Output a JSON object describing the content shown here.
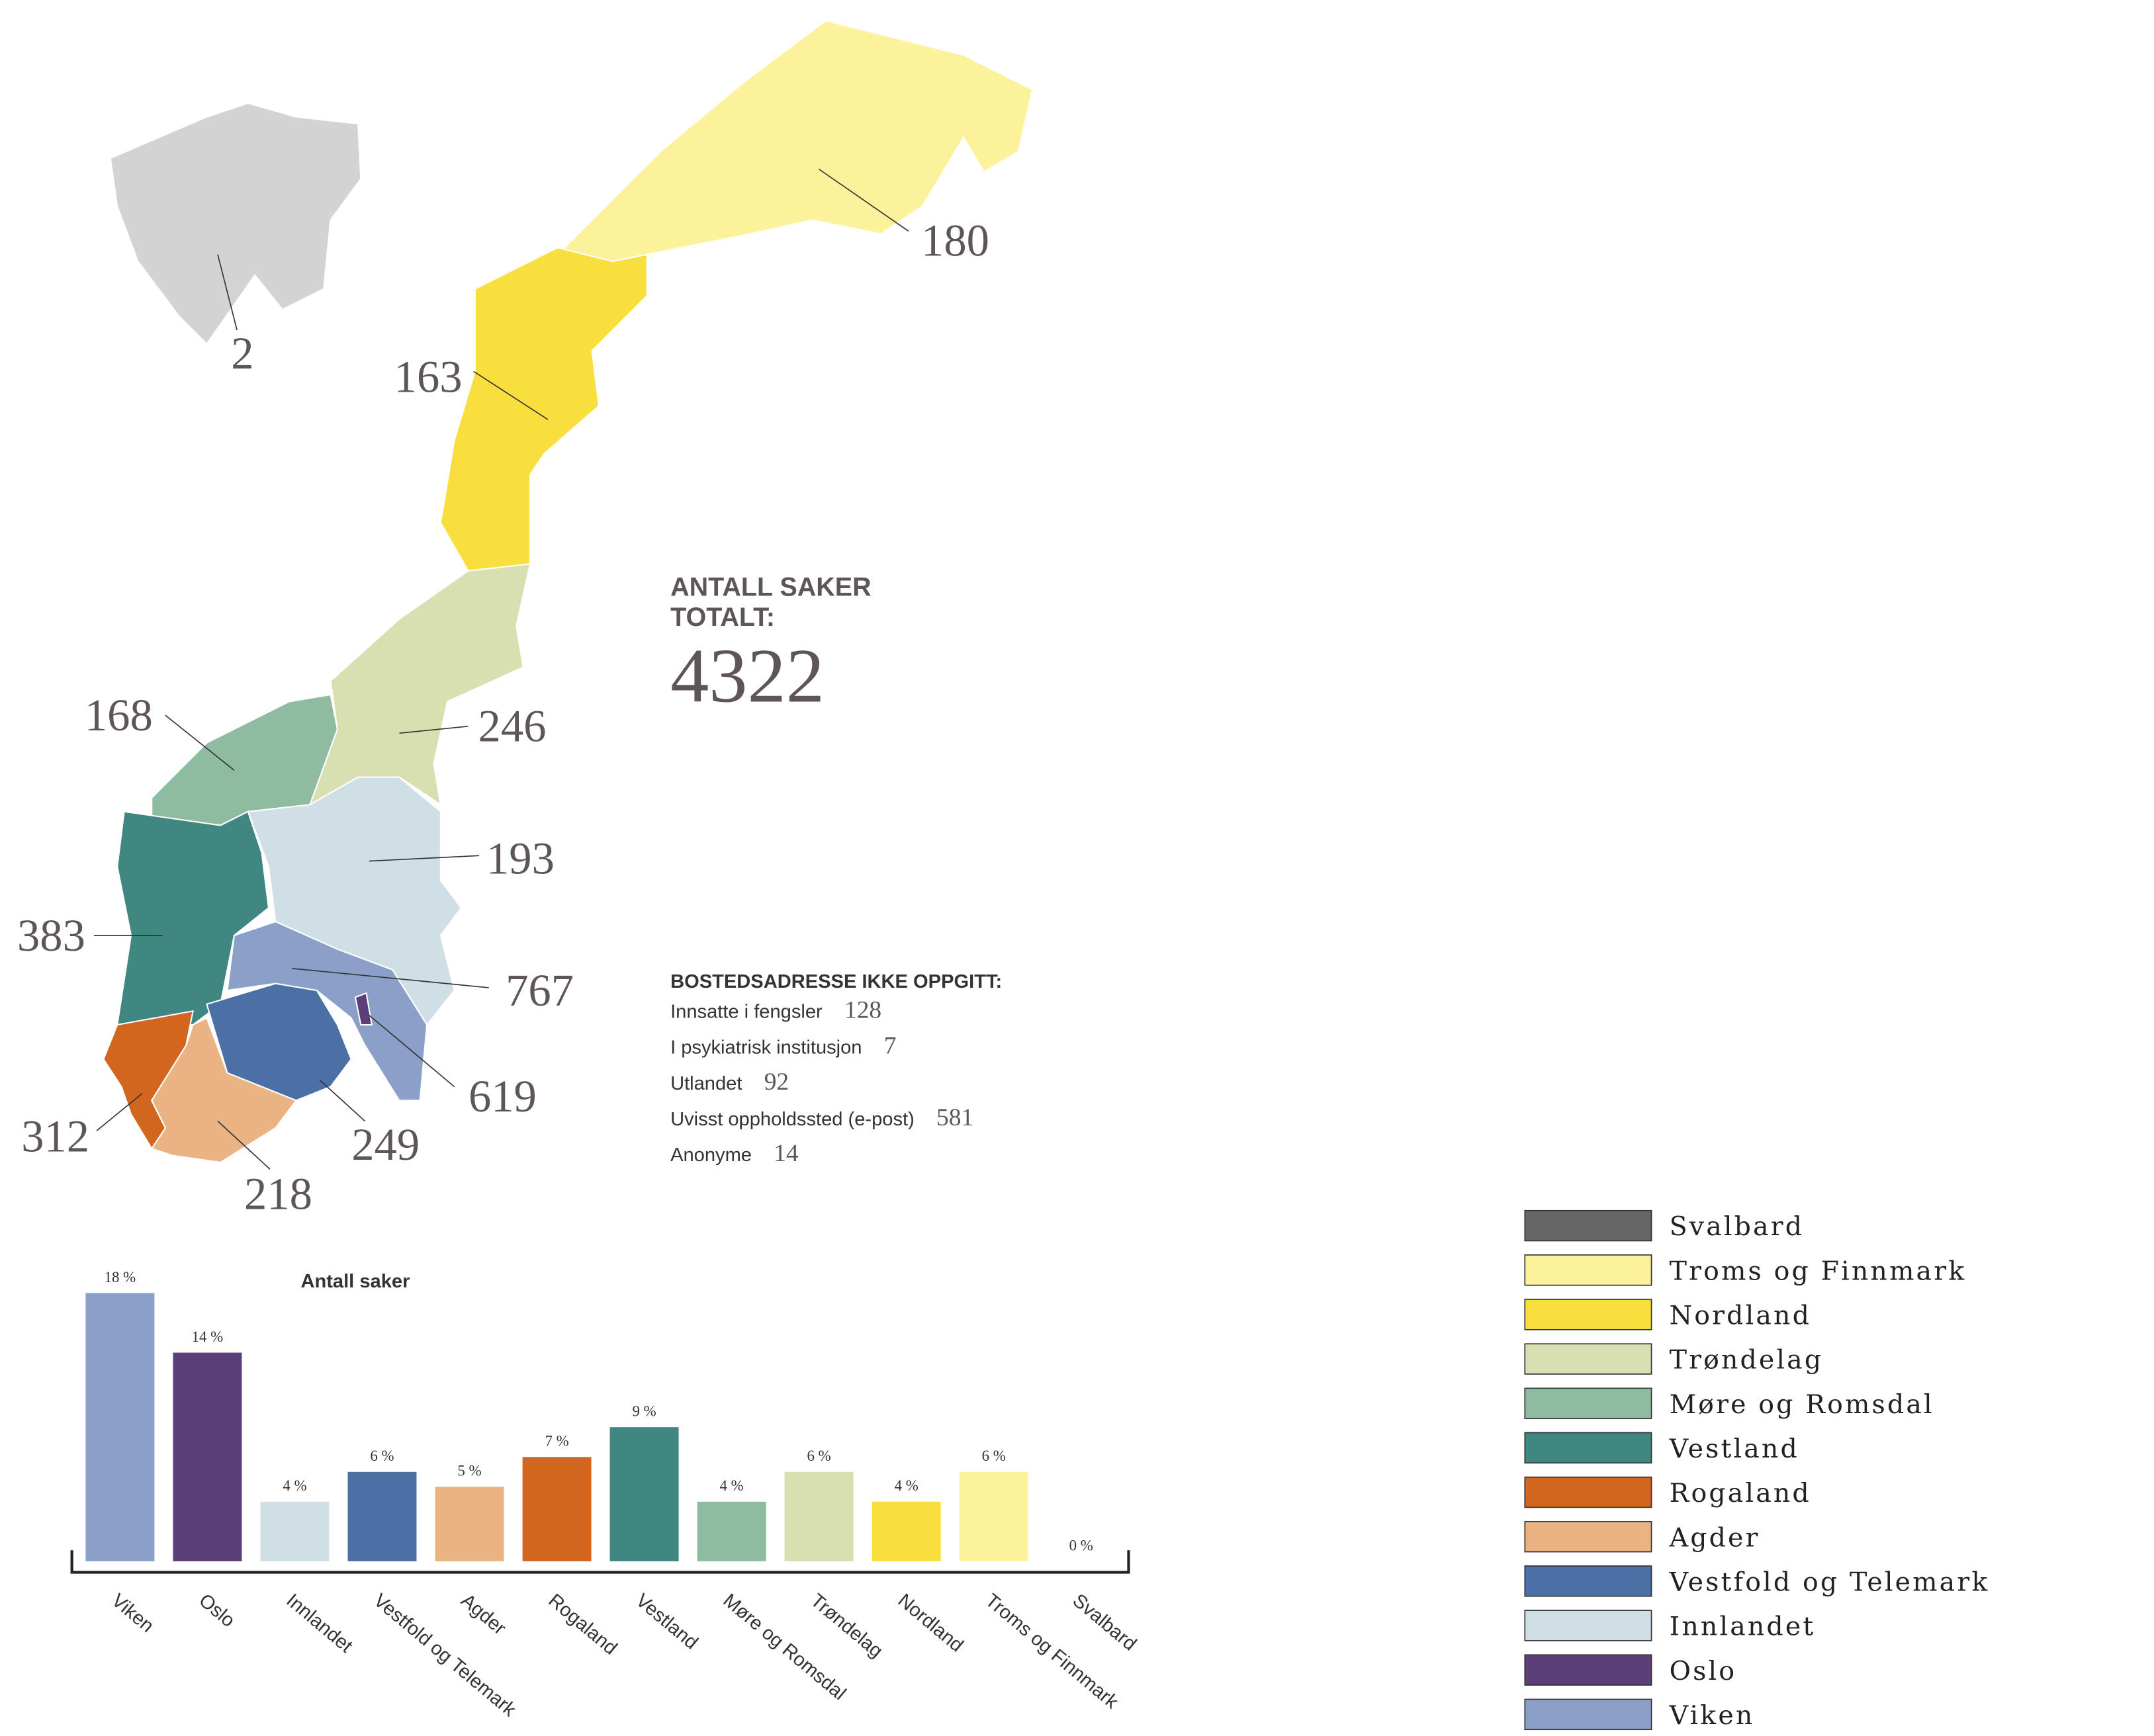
{
  "map_labels": [
    180,
    2,
    163,
    168,
    246,
    193,
    383,
    767,
    619,
    312,
    249,
    218
  ],
  "total": {
    "title_lines": [
      "ANTALL SAKER",
      "TOTALT:"
    ],
    "value": 4322
  },
  "unspecified": {
    "title": "BOSTEDSADRESSE IKKE OPPGITT:",
    "rows": [
      [
        "Innsatte i fengsler",
        128
      ],
      [
        "I psykiatrisk institusjon",
        7
      ],
      [
        "Utlandet",
        92
      ],
      [
        "Uvisst oppholdssted (e-post)",
        581
      ],
      [
        "Anonyme",
        14
      ]
    ]
  },
  "chart_data": {
    "type": "bar",
    "title": "Antall saker",
    "categories": [
      "Viken",
      "Oslo",
      "Innlandet",
      "Vestfold og Telemark",
      "Agder",
      "Rogaland",
      "Vestland",
      "Møre og Romsdal",
      "Trøndelag",
      "Nordland",
      "Troms og Finnmark",
      "Svalbard"
    ],
    "values": [
      18,
      14,
      4,
      6,
      5,
      7,
      9,
      4,
      6,
      4,
      6,
      0
    ],
    "value_labels": [
      "18 %",
      "14 %",
      "4 %",
      "6 %",
      "5 %",
      "7 %",
      "9 %",
      "4 %",
      "6 %",
      "4 %",
      "6 %",
      "0 %"
    ],
    "colors": [
      "#8aa0c8",
      "#5c3f78",
      "#d0dfe6",
      "#4a70a5",
      "#eab384",
      "#d2661e",
      "#3f8780",
      "#8fbca0",
      "#d8dfb0",
      "#f9df3d",
      "#fdf29c",
      "#666666"
    ]
  },
  "legend": [
    {
      "name": "Svalbard",
      "color": "#666666"
    },
    {
      "name": "Troms og Finnmark",
      "color": "#fdf29c"
    },
    {
      "name": "Nordland",
      "color": "#f9df3d"
    },
    {
      "name": "Trøndelag",
      "color": "#d8dfb0"
    },
    {
      "name": "Møre og Romsdal",
      "color": "#8fbca0"
    },
    {
      "name": "Vestland",
      "color": "#3f8780"
    },
    {
      "name": "Rogaland",
      "color": "#d2661e"
    },
    {
      "name": "Agder",
      "color": "#eab384"
    },
    {
      "name": "Vestfold og Telemark",
      "color": "#4a70a5"
    },
    {
      "name": "Innlandet",
      "color": "#d0dfe6"
    },
    {
      "name": "Oslo",
      "color": "#5c3f78"
    },
    {
      "name": "Viken",
      "color": "#8aa0c8"
    }
  ]
}
